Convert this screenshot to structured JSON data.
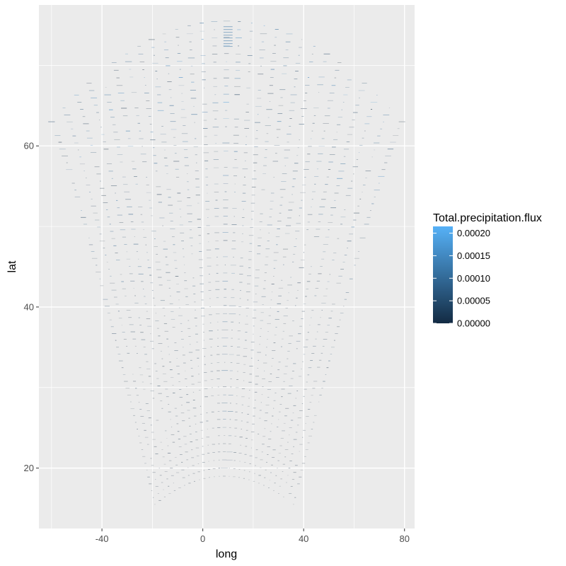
{
  "chart_data": {
    "type": "scatter",
    "description_of_marks": "grid of short horizontal dash segments (one per curvilinear model grid cell) tinted by precipitation flux",
    "xlabel": "long",
    "ylabel": "lat",
    "xlim": [
      -65,
      84
    ],
    "ylim": [
      12.5,
      77.5
    ],
    "x_ticks": [
      -40,
      0,
      40,
      80
    ],
    "x_tick_labels": [
      "-40",
      "0",
      "40",
      "80"
    ],
    "y_ticks": [
      20,
      40,
      60
    ],
    "y_tick_labels": [
      "20",
      "40",
      "60"
    ],
    "grid": true,
    "background": "#ebebeb",
    "grid_color": "#ffffff",
    "domain": {
      "top_center": [
        8,
        75.5
      ],
      "top_left": [
        -60,
        63
      ],
      "top_right": [
        79,
        63
      ],
      "bottom_left": [
        -19,
        15.5
      ],
      "bottom_right": [
        36,
        15.5
      ],
      "bottom_center_lat": 19
    },
    "grid_columns": 28,
    "grid_rows": 56,
    "center_column_long": 10,
    "legend": {
      "title": "Total.precipitation.flux",
      "position": "right",
      "type": "colorbar",
      "ticks": [
        0.0,
        5e-05,
        0.0001,
        0.00015,
        0.0002
      ],
      "tick_labels": [
        "0.00000",
        "0.00005",
        "0.00010",
        "0.00015",
        "0.00020"
      ],
      "range": [
        0.0,
        0.000215
      ],
      "low_color": "#132b43",
      "high_color": "#56b1f7"
    }
  }
}
